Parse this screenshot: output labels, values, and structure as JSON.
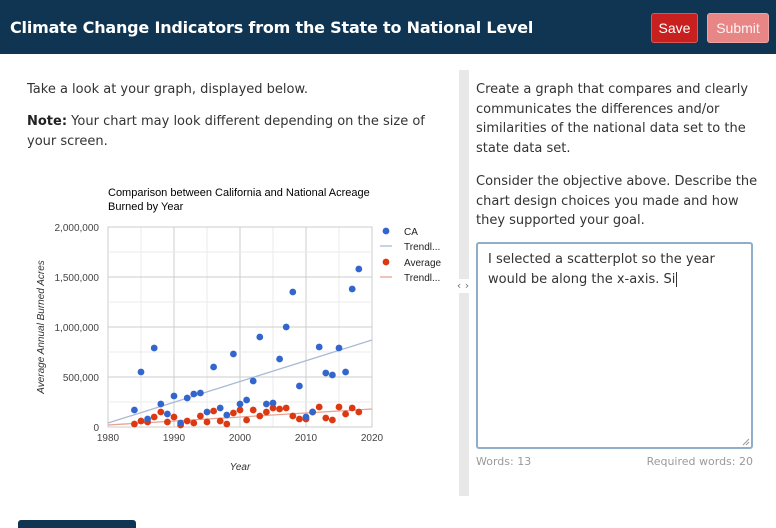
{
  "header": {
    "title": "Climate Change Indicators from the State to National Level",
    "save_label": "Save",
    "submit_label": "Submit"
  },
  "left": {
    "intro": "Take a look at your graph, displayed below.",
    "note_label": "Note:",
    "note_text": " Your chart may look different depending on the size of your screen."
  },
  "divider": {
    "handle": "‹ ›"
  },
  "right": {
    "prompt1": "Create a graph that compares and clearly communicates the differences and/or similarities of the national data set to the state data set.",
    "prompt2": "Consider the objective above. Describe the chart design choices you made and how they supported your goal.",
    "answer": "I selected a scatterplot so the year would be along the x-axis. Si",
    "words_label": "Words: 13",
    "required_label": "Required words: 20"
  },
  "colors": {
    "header": "#0f3552",
    "save": "#c8201e",
    "submit": "#e88585",
    "ca": "#3366cc",
    "avg": "#dc3912"
  },
  "chart_data": {
    "type": "scatter",
    "title": "Comparison between California and National Acreage Burned by Year",
    "xlabel": "Year",
    "ylabel": "Average Annual Burned Acres",
    "xlim": [
      1980,
      2020
    ],
    "ylim": [
      0,
      2000000
    ],
    "x_ticks": [
      "1980",
      "1990",
      "2000",
      "2010",
      "2020"
    ],
    "y_ticks": [
      "0",
      "500,000",
      "1,000,000",
      "1,500,000",
      "2,000,000"
    ],
    "legend": [
      "CA",
      "Trendl...",
      "Average",
      "Trendl..."
    ],
    "grid": true,
    "legend_position": "right",
    "series": [
      {
        "name": "CA",
        "x": [
          1984,
          1985,
          1986,
          1987,
          1988,
          1989,
          1990,
          1991,
          1992,
          1993,
          1994,
          1995,
          1996,
          1997,
          1998,
          1999,
          2000,
          2001,
          2002,
          2003,
          2004,
          2005,
          2006,
          2007,
          2008,
          2009,
          2010,
          2011,
          2012,
          2013,
          2014,
          2015,
          2016,
          2017,
          2018
        ],
        "y": [
          170000,
          550000,
          80000,
          790000,
          230000,
          130000,
          310000,
          40000,
          290000,
          330000,
          340000,
          150000,
          600000,
          190000,
          120000,
          730000,
          230000,
          270000,
          460000,
          900000,
          230000,
          240000,
          680000,
          1000000,
          1350000,
          410000,
          100000,
          150000,
          800000,
          540000,
          520000,
          790000,
          550000,
          1380000,
          1580000
        ]
      },
      {
        "name": "Trendline CA",
        "x": [
          1980,
          2020
        ],
        "y": [
          40000,
          870000
        ]
      },
      {
        "name": "Average",
        "x": [
          1984,
          1985,
          1986,
          1987,
          1988,
          1989,
          1990,
          1991,
          1992,
          1993,
          1994,
          1995,
          1996,
          1997,
          1998,
          1999,
          2000,
          2001,
          2002,
          2003,
          2004,
          2005,
          2006,
          2007,
          2008,
          2009,
          2010,
          2011,
          2012,
          2013,
          2014,
          2015,
          2016,
          2017,
          2018
        ],
        "y": [
          30000,
          60000,
          50000,
          100000,
          150000,
          50000,
          100000,
          20000,
          60000,
          40000,
          110000,
          50000,
          160000,
          60000,
          30000,
          140000,
          170000,
          70000,
          170000,
          110000,
          150000,
          190000,
          180000,
          190000,
          110000,
          80000,
          80000,
          150000,
          200000,
          90000,
          70000,
          200000,
          130000,
          190000,
          150000
        ]
      },
      {
        "name": "Trendline Average",
        "x": [
          1980,
          2020
        ],
        "y": [
          20000,
          180000
        ]
      }
    ]
  }
}
